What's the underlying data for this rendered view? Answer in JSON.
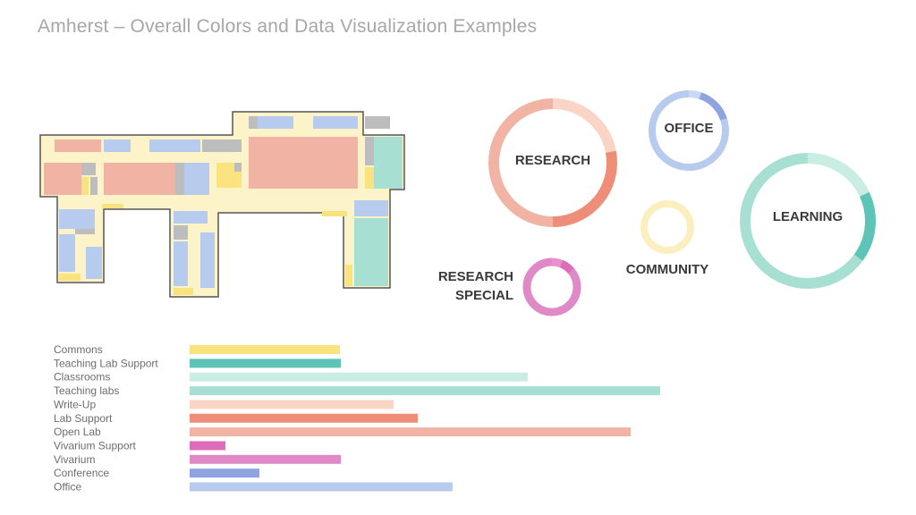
{
  "page": {
    "title": "Amherst – Overall Colors and Data Visualization Examples"
  },
  "colors": {
    "floor_background": "#fdf3c8",
    "outline": "#555555",
    "open_lab": "#f1b3a3",
    "office": "#b7cbef",
    "teaching_labs": "#a7dfd3",
    "commons": "#f8e37f",
    "support_gray": "#bdbdbd"
  },
  "donuts": [
    {
      "label": "RESEARCH",
      "base_color": "#f1b3a3",
      "segments": [
        {
          "fraction": 0.22,
          "color": "#fad5c6"
        },
        {
          "fraction": 0.28,
          "color": "#ef8e78"
        },
        {
          "fraction": 0.5,
          "color": "#f1b3a3"
        }
      ]
    },
    {
      "label": "OFFICE",
      "base_color": "#b7cbef",
      "segments": [
        {
          "fraction": 0.05,
          "color": "#c9d8f5"
        },
        {
          "fraction": 0.15,
          "color": "#8fa3e0"
        },
        {
          "fraction": 0.8,
          "color": "#b7cbef"
        }
      ]
    },
    {
      "label": "LEARNING",
      "base_color": "#a7dfd3",
      "segments": [
        {
          "fraction": 0.18,
          "color": "#c9ece3"
        },
        {
          "fraction": 0.17,
          "color": "#5fc4b8"
        },
        {
          "fraction": 0.65,
          "color": "#a7dfd3"
        }
      ]
    },
    {
      "label": "COMMUNITY",
      "base_color": "#fbefbf",
      "segments": [
        {
          "fraction": 1.0,
          "color": "#fbefbf"
        }
      ]
    },
    {
      "label_lines": [
        "RESEARCH",
        "SPECIAL"
      ],
      "base_color": "#df8ac6",
      "segments": [
        {
          "fraction": 0.06,
          "color": "#e990cf"
        },
        {
          "fraction": 0.08,
          "color": "#dd6cbb"
        },
        {
          "fraction": 0.86,
          "color": "#df8ac6"
        }
      ]
    }
  ],
  "chart_data": {
    "type": "bar",
    "orientation": "horizontal",
    "categories": [
      "Commons",
      "Teaching Lab Support",
      "Classrooms",
      "Teaching labs",
      "Write-Up",
      "Lab Support",
      "Open Lab",
      "Vivarium Support",
      "Vivarium",
      "Conference",
      "Office"
    ],
    "values": [
      168,
      169,
      378,
      526,
      228,
      255,
      493,
      40,
      169,
      78,
      294
    ],
    "colors": [
      "#f8e37f",
      "#5fc4b8",
      "#c9ece3",
      "#a7dfd3",
      "#fad5c6",
      "#ef8e78",
      "#f1b3a3",
      "#dd6cbb",
      "#df8ac6",
      "#8fa3e0",
      "#b7cbef"
    ],
    "xlim": [
      0,
      560
    ],
    "title": "",
    "xlabel": "",
    "ylabel": ""
  }
}
